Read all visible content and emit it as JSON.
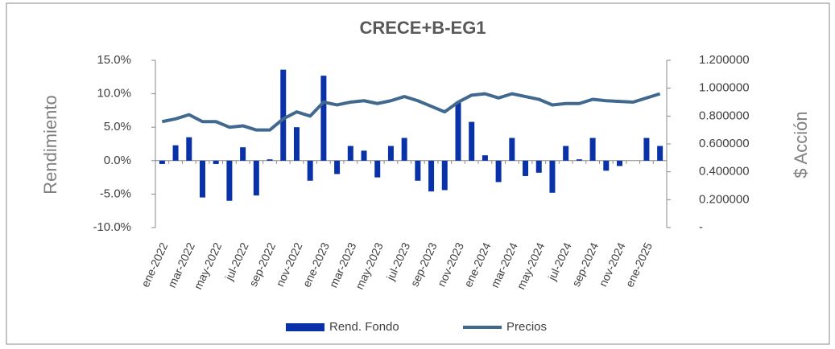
{
  "chart_data": {
    "type": "bar_line",
    "title": "CRECE+B-EG1",
    "y_label": "Rendimiento",
    "y2_label": "$ Acción",
    "categories": [
      "ene-2022",
      null,
      "mar-2022",
      null,
      "may-2022",
      null,
      "jul-2022",
      null,
      "sep-2022",
      null,
      "nov-2022",
      null,
      "ene-2023",
      null,
      "mar-2023",
      null,
      "may-2023",
      null,
      "jul-2023",
      null,
      "sep-2023",
      null,
      "nov-2023",
      null,
      "ene-2024",
      null,
      "mar-2024",
      null,
      "may-2024",
      null,
      "jul-2024",
      null,
      "sep-2024",
      null,
      "nov-2024",
      null,
      "ene-2025",
      null
    ],
    "series": [
      {
        "name": "Rend. Fondo",
        "color": "#0a32a8",
        "kind": "bar",
        "values": [
          -0.5,
          2.3,
          3.5,
          -5.5,
          -0.5,
          -6.0,
          2.0,
          -5.2,
          0.2,
          13.6,
          5.0,
          -3.0,
          12.7,
          -2.0,
          2.2,
          1.5,
          -2.5,
          2.2,
          3.4,
          -3.0,
          -4.6,
          -4.4,
          8.8,
          5.8,
          0.8,
          -3.2,
          3.4,
          -2.3,
          -1.8,
          -4.8,
          2.2,
          0.2,
          3.4,
          -1.5,
          -0.8,
          0.0,
          3.4,
          2.2
        ]
      },
      {
        "name": "Precios",
        "color": "#41698f",
        "kind": "line",
        "axis": "y2",
        "values": [
          0.76,
          0.78,
          0.81,
          0.76,
          0.76,
          0.72,
          0.73,
          0.7,
          0.7,
          0.78,
          0.83,
          0.8,
          0.9,
          0.88,
          0.9,
          0.91,
          0.89,
          0.91,
          0.94,
          0.91,
          0.87,
          0.83,
          0.9,
          0.95,
          0.96,
          0.93,
          0.96,
          0.94,
          0.92,
          0.88,
          0.89,
          0.89,
          0.92,
          0.91,
          0.905,
          0.9,
          0.93,
          0.96
        ]
      }
    ],
    "ylim": [
      -10,
      15
    ],
    "yticks": [
      {
        "value": -10,
        "label": "-10.0%"
      },
      {
        "value": -5,
        "label": "-5.0%"
      },
      {
        "value": 0,
        "label": "0.0%"
      },
      {
        "value": 5,
        "label": "5.0%"
      },
      {
        "value": 10,
        "label": "10.0%"
      },
      {
        "value": 15,
        "label": "15.0%"
      }
    ],
    "y2lim": [
      0,
      1.2
    ],
    "y2ticks": [
      {
        "value": 0,
        "label": "-"
      },
      {
        "value": 0.2,
        "label": "0.200000"
      },
      {
        "value": 0.4,
        "label": "0.400000"
      },
      {
        "value": 0.6,
        "label": "0.600000"
      },
      {
        "value": 0.8,
        "label": "0.800000"
      },
      {
        "value": 1.0,
        "label": "1.000000"
      },
      {
        "value": 1.2,
        "label": "1.200000"
      }
    ],
    "legend": "bottom"
  }
}
